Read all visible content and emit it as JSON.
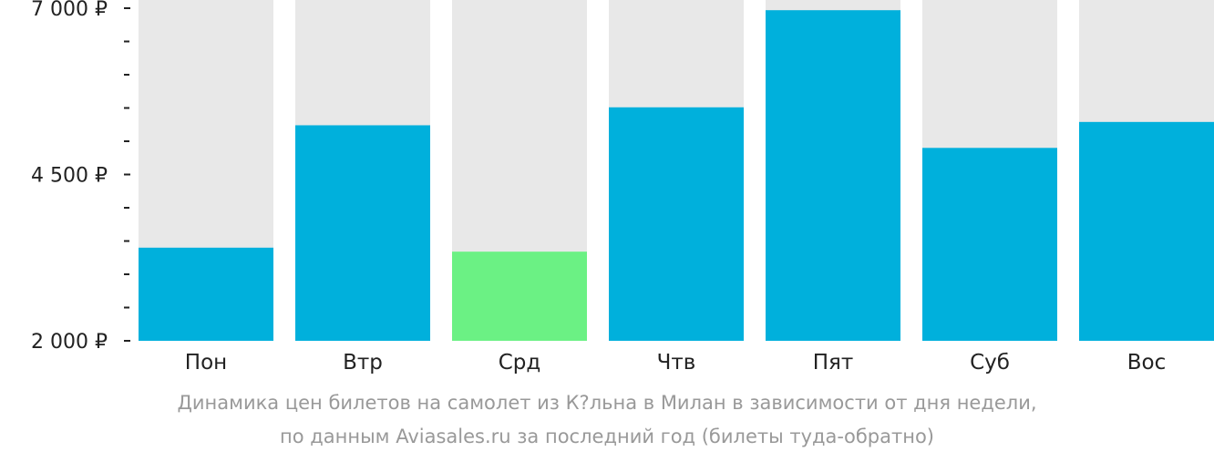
{
  "chart_data": {
    "type": "bar",
    "categories": [
      "Пон",
      "Втр",
      "Срд",
      "Чтв",
      "Пят",
      "Суб",
      "Вос"
    ],
    "values": [
      3400,
      5240,
      3340,
      5510,
      6970,
      4900,
      5290
    ],
    "highlight_index": 2,
    "ylim": [
      2000,
      7000
    ],
    "y_ticks": [
      {
        "value": 7000,
        "label": "7 000 ₽"
      },
      {
        "value": 4500,
        "label": "4 500 ₽"
      },
      {
        "value": 2000,
        "label": "2 000 ₽"
      }
    ],
    "minor_tick_step": 500,
    "colors": {
      "bar": "#00b0dc",
      "highlight": "#6bf184",
      "track": "#e8e8e8",
      "text": "#222222"
    },
    "caption_line1": "Динамика цен билетов на самолет из К?льна в Милан в зависимости от дня недели,",
    "caption_line2": "по данным Aviasales.ru за последний год (билеты туда-обратно)"
  }
}
